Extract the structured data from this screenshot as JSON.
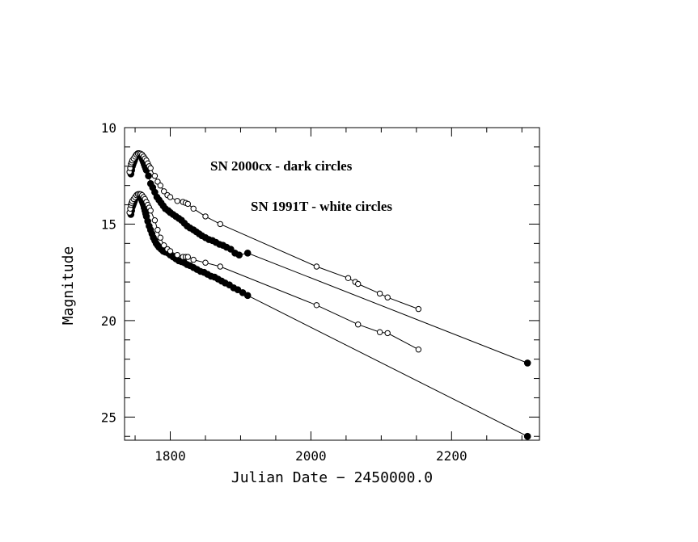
{
  "chart_data": {
    "type": "scatter",
    "title": "",
    "xlabel": "Julian Date − 2450000.0",
    "ylabel": "Magnitude",
    "xlim": [
      1735,
      2325
    ],
    "ylim": [
      26.2,
      10
    ],
    "y_inverted": true,
    "x_ticks": [
      1800,
      2000,
      2200
    ],
    "y_ticks": [
      10,
      15,
      20,
      25
    ],
    "annotations": [
      "SN 2000cx - dark circles",
      "SN 1991T - white circles"
    ],
    "series": [
      {
        "marker": "filled",
        "curve": "upper",
        "x": [
          1744,
          1745,
          1746,
          1747,
          1748,
          1749,
          1750,
          1751,
          1752,
          1753,
          1754,
          1755,
          1756,
          1757,
          1758,
          1759,
          1760,
          1761,
          1762,
          1763,
          1764,
          1765,
          1766,
          1769,
          1772,
          1775,
          1778,
          1781,
          1784,
          1787,
          1790,
          1793,
          1797,
          1800,
          1804,
          1808,
          1812,
          1816,
          1820,
          1824,
          1828,
          1833,
          1837,
          1841,
          1845,
          1850,
          1855,
          1860,
          1865,
          1870,
          1875,
          1880,
          1886,
          1892,
          1898,
          1910,
          2308
        ],
        "y": [
          12.4,
          12.2,
          12.0,
          11.9,
          11.8,
          11.7,
          11.6,
          11.5,
          11.42,
          11.38,
          11.35,
          11.35,
          11.37,
          11.4,
          11.45,
          11.5,
          11.6,
          11.7,
          11.8,
          11.9,
          12.0,
          12.1,
          12.2,
          12.5,
          12.9,
          13.1,
          13.35,
          13.6,
          13.75,
          13.9,
          14.05,
          14.2,
          14.3,
          14.4,
          14.5,
          14.6,
          14.7,
          14.8,
          14.95,
          15.1,
          15.2,
          15.3,
          15.4,
          15.5,
          15.6,
          15.7,
          15.8,
          15.85,
          15.95,
          16.05,
          16.1,
          16.2,
          16.3,
          16.5,
          16.6,
          16.5,
          22.2
        ]
      },
      {
        "marker": "open",
        "curve": "upper",
        "x": [
          1742,
          1743,
          1744,
          1745,
          1746,
          1748,
          1750,
          1752,
          1754,
          1756,
          1758,
          1760,
          1762,
          1764,
          1766,
          1768,
          1770,
          1772,
          1778,
          1782,
          1786,
          1791,
          1796,
          1800,
          1810,
          1818,
          1822,
          1825,
          1833,
          1850,
          1871,
          2008,
          2053,
          2063,
          2067,
          2098,
          2109,
          2153
        ],
        "y": [
          12.3,
          12.1,
          11.9,
          11.8,
          11.7,
          11.6,
          11.5,
          11.4,
          11.35,
          11.33,
          11.35,
          11.4,
          11.5,
          11.6,
          11.7,
          11.85,
          12.0,
          12.1,
          12.5,
          12.8,
          13.0,
          13.3,
          13.5,
          13.6,
          13.8,
          13.85,
          13.9,
          13.95,
          14.2,
          14.6,
          15.0,
          17.2,
          17.8,
          18.0,
          18.1,
          18.6,
          18.8,
          19.4
        ]
      },
      {
        "marker": "filled",
        "curve": "lower",
        "x": [
          1744,
          1745,
          1746,
          1747,
          1748,
          1749,
          1750,
          1751,
          1752,
          1753,
          1754,
          1755,
          1756,
          1757,
          1758,
          1759,
          1760,
          1761,
          1762,
          1763,
          1764,
          1765,
          1766,
          1768,
          1770,
          1772,
          1774,
          1776,
          1778,
          1780,
          1782,
          1784,
          1787,
          1790,
          1793,
          1797,
          1800,
          1804,
          1808,
          1812,
          1816,
          1820,
          1824,
          1828,
          1833,
          1838,
          1843,
          1848,
          1853,
          1858,
          1863,
          1868,
          1873,
          1878,
          1884,
          1890,
          1896,
          1903,
          1910,
          2308
        ],
        "y": [
          14.5,
          14.3,
          14.1,
          14.0,
          13.9,
          13.8,
          13.7,
          13.6,
          13.55,
          13.5,
          13.48,
          13.48,
          13.5,
          13.55,
          13.6,
          13.7,
          13.8,
          13.9,
          14.0,
          14.15,
          14.3,
          14.45,
          14.6,
          14.85,
          15.1,
          15.3,
          15.5,
          15.7,
          15.85,
          16.0,
          16.1,
          16.2,
          16.3,
          16.4,
          16.45,
          16.5,
          16.6,
          16.7,
          16.8,
          16.9,
          16.95,
          17.0,
          17.1,
          17.15,
          17.25,
          17.35,
          17.45,
          17.5,
          17.6,
          17.7,
          17.75,
          17.85,
          17.95,
          18.05,
          18.15,
          18.3,
          18.4,
          18.55,
          18.7,
          26.0
        ]
      },
      {
        "marker": "open",
        "curve": "lower",
        "x": [
          1742,
          1743,
          1744,
          1745,
          1746,
          1748,
          1750,
          1752,
          1754,
          1756,
          1758,
          1760,
          1762,
          1764,
          1766,
          1768,
          1770,
          1772,
          1778,
          1782,
          1786,
          1791,
          1796,
          1800,
          1810,
          1818,
          1822,
          1825,
          1833,
          1850,
          1871,
          2008,
          2067,
          2098,
          2109,
          2153
        ],
        "y": [
          14.4,
          14.2,
          14.0,
          13.9,
          13.8,
          13.7,
          13.6,
          13.5,
          13.45,
          13.44,
          13.45,
          13.5,
          13.6,
          13.7,
          13.85,
          14.0,
          14.15,
          14.3,
          14.8,
          15.3,
          15.7,
          16.1,
          16.3,
          16.4,
          16.6,
          16.7,
          16.7,
          16.7,
          16.85,
          17.0,
          17.2,
          19.2,
          20.2,
          20.6,
          20.65,
          21.5
        ]
      }
    ]
  }
}
